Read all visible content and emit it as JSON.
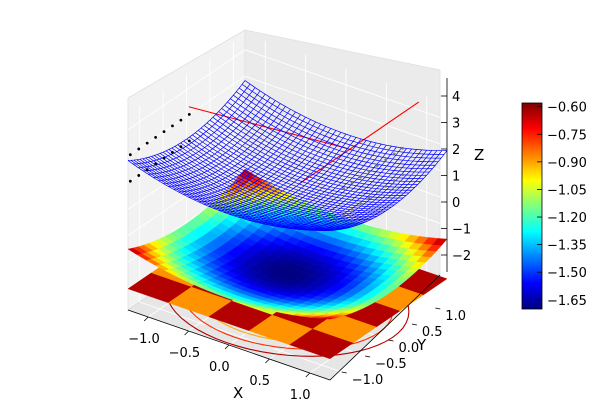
{
  "chart_data": {
    "type": "surface3d",
    "title": "",
    "xlabel": "X",
    "ylabel": "Y",
    "zlabel": "Z",
    "xlim": [
      -1.25,
      1.25
    ],
    "ylim": [
      -1.25,
      1.25
    ],
    "zlim": [
      -2.8,
      4.6
    ],
    "xticks": [
      "−1.0",
      "−0.5",
      "0.0",
      "0.5",
      "1.0"
    ],
    "yticks": [
      "−1.0",
      "−0.5",
      "0.0",
      "0.5",
      "1.0"
    ],
    "zticks": [
      "−2",
      "−1",
      "0",
      "1",
      "2",
      "3",
      "4"
    ],
    "surface": {
      "function": "z = x^2 + y^2 - 1.7",
      "style": "wireframe",
      "color": "#0000ff"
    },
    "filled_surface": {
      "function": "z = x^2 + y^2 - 1.7",
      "offset": -1.0,
      "colormap": "jet"
    },
    "checker_surface": {
      "offset": -2.0,
      "grid": 5,
      "colormap": "jet"
    },
    "contour_floor": {
      "levels": 6,
      "colormap": "jet"
    },
    "red_lines": 2,
    "dot_columns": [
      "black",
      "gray"
    ],
    "colorbar": {
      "min": -1.7,
      "max": -0.58,
      "ticks": [
        "−1.65",
        "−1.50",
        "−1.35",
        "−1.20",
        "−1.05",
        "−0.90",
        "−0.75",
        "−0.60"
      ]
    },
    "grid": true
  }
}
